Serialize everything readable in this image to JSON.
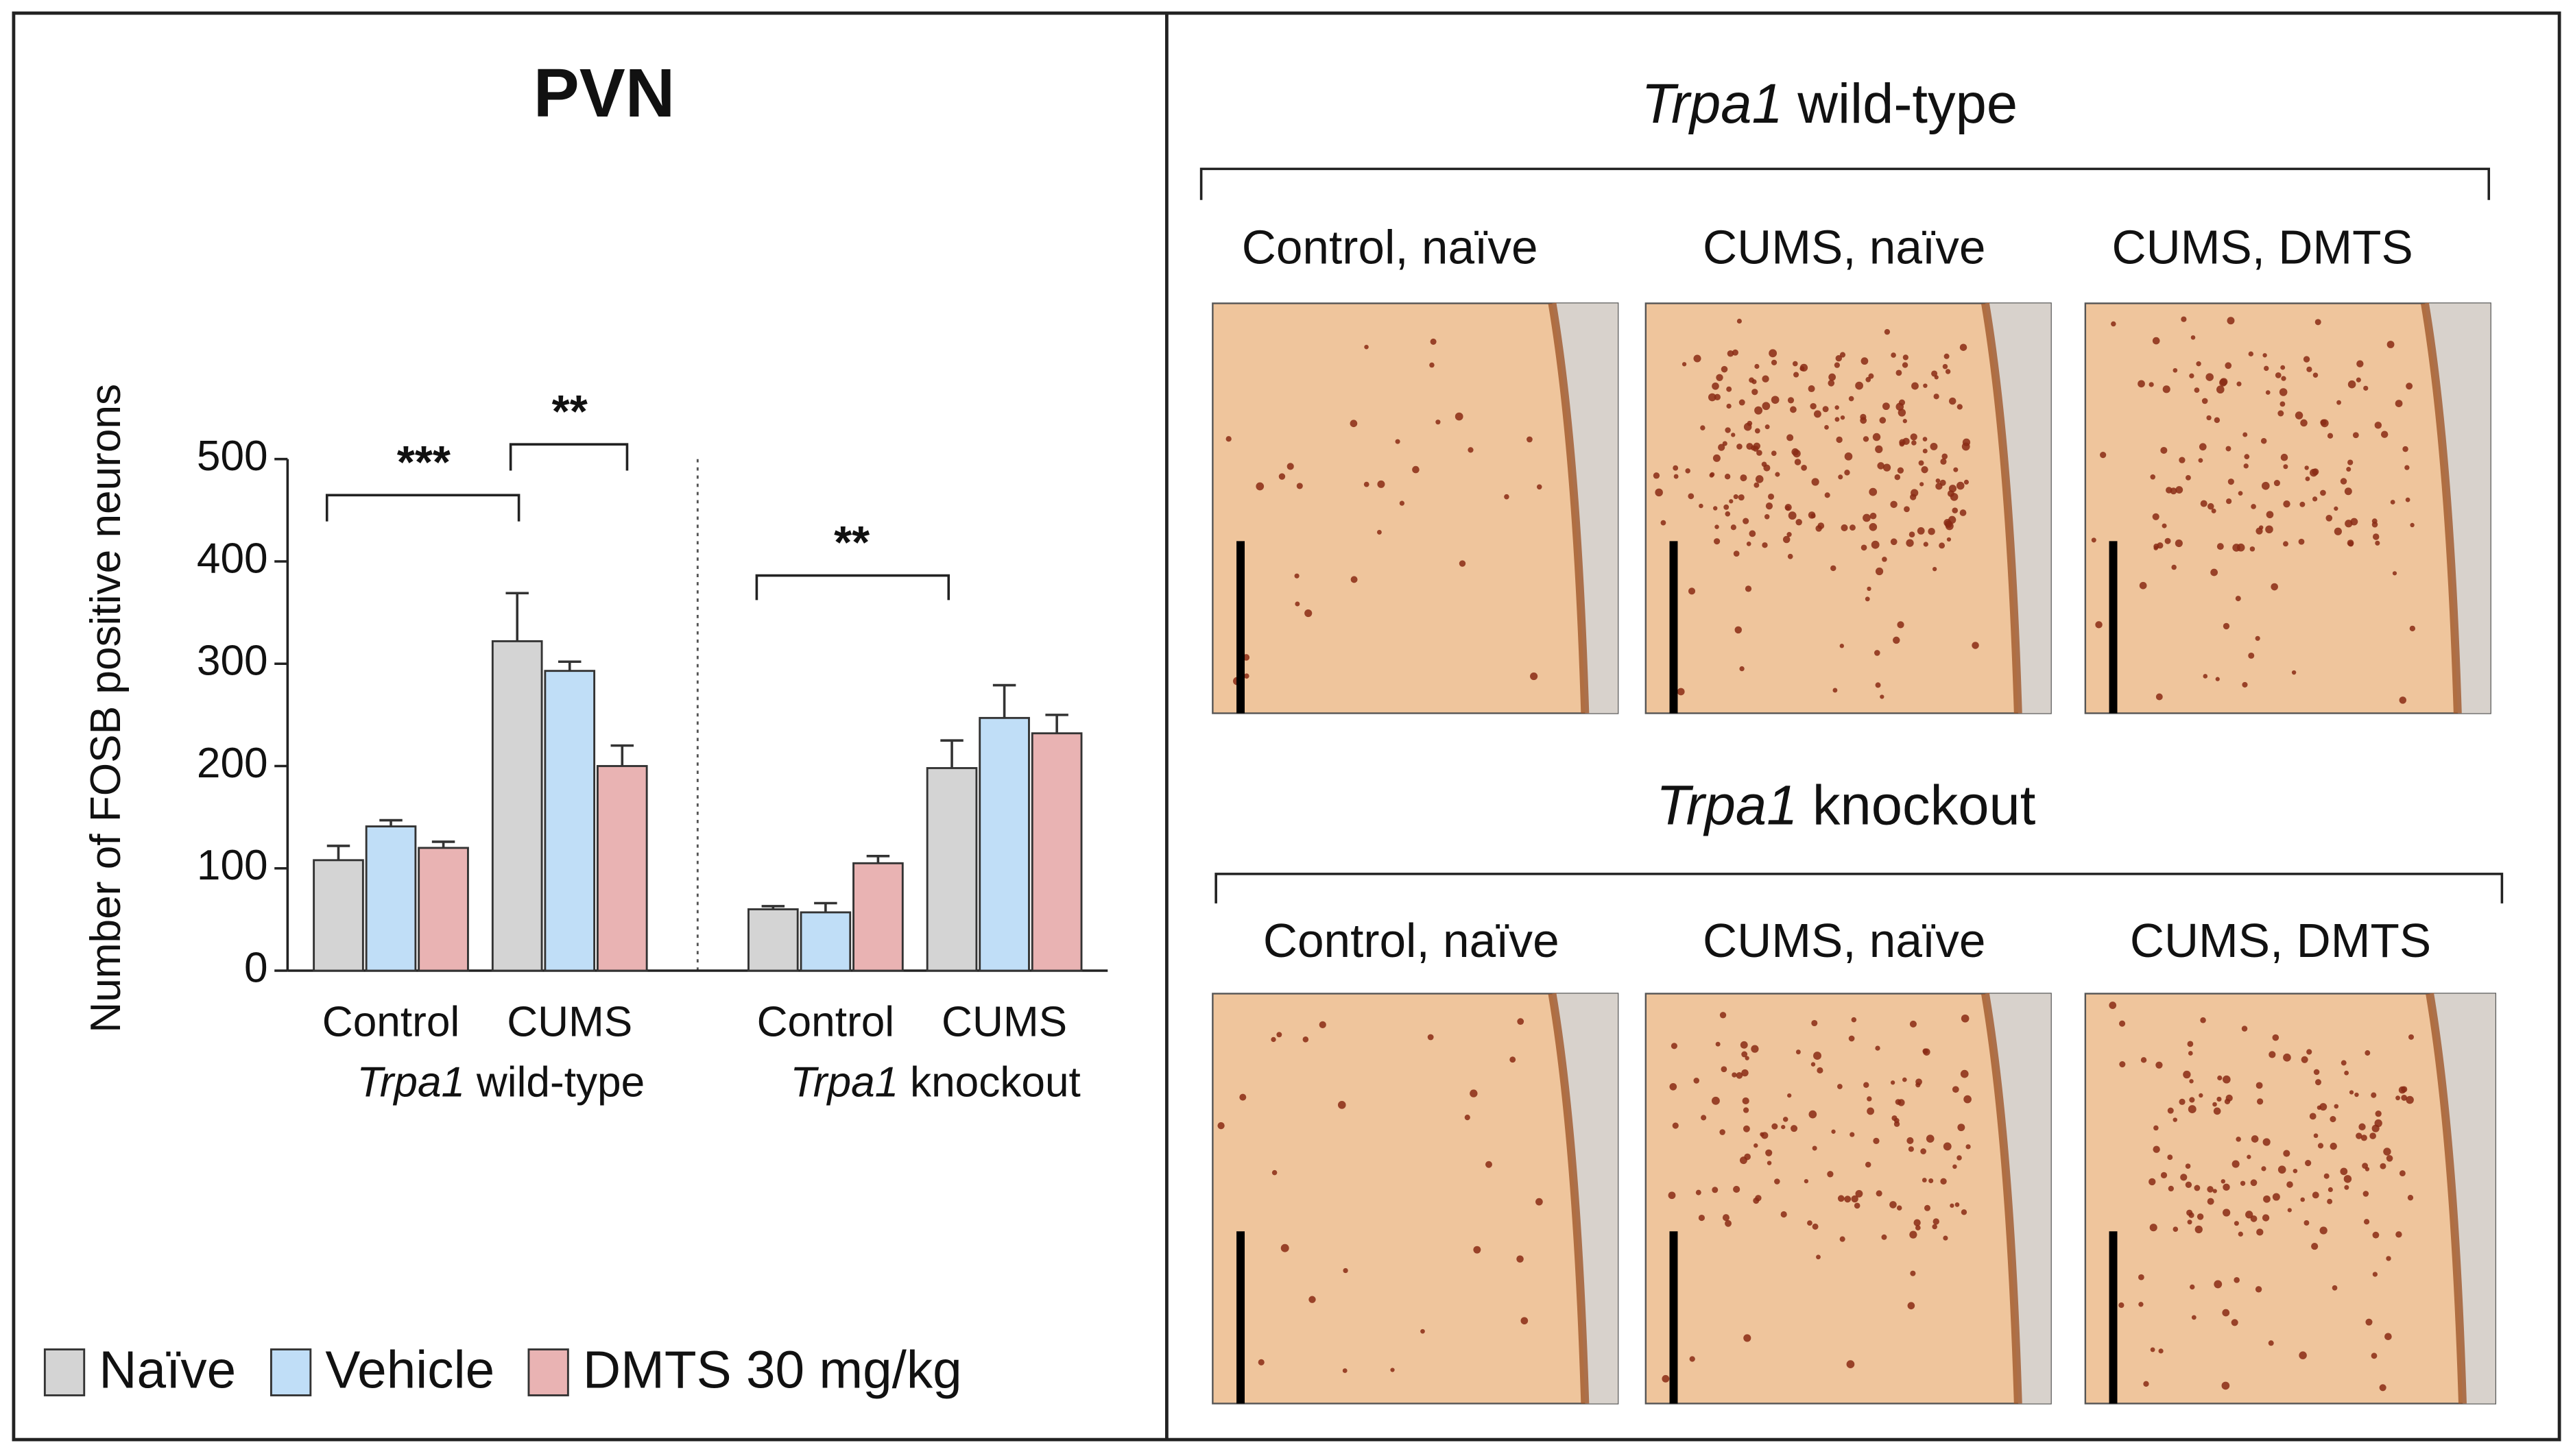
{
  "chart_data": {
    "type": "bar",
    "title": "PVN",
    "ylabel": "Number of FOSB positive neurons",
    "gene": "Trpa1",
    "genotypes": [
      "wild-type",
      "knockout"
    ],
    "categories": [
      "Control",
      "CUMS",
      "Control",
      "CUMS"
    ],
    "series": [
      {
        "name": "Naïve",
        "color": "#d4d4d4",
        "values": [
          108,
          322,
          60,
          198
        ],
        "errors": [
          14,
          47,
          3,
          27
        ]
      },
      {
        "name": "Vehicle",
        "color": "#c0def7",
        "values": [
          141,
          293,
          57,
          247
        ],
        "errors": [
          6,
          9,
          9,
          32
        ]
      },
      {
        "name": "DMTS 30 mg/kg",
        "color": "#e9b3b3",
        "values": [
          120,
          200,
          105,
          232
        ],
        "errors": [
          6,
          20,
          7,
          18
        ]
      }
    ],
    "ylim": [
      0,
      500
    ],
    "yticks": [
      0,
      100,
      200,
      300,
      400,
      500
    ],
    "annotations": [
      "***",
      "**",
      "**"
    ],
    "legend": "bottom-left"
  },
  "micrographs": [
    {
      "gene": "Trpa1",
      "title": "wild-type",
      "labels": [
        "Control, naïve",
        "CUMS, naïve",
        "CUMS, DMTS"
      ]
    },
    {
      "gene": "Trpa1",
      "title": "knockout",
      "labels": [
        "Control, naïve",
        "CUMS, naïve",
        "CUMS, DMTS"
      ]
    }
  ]
}
